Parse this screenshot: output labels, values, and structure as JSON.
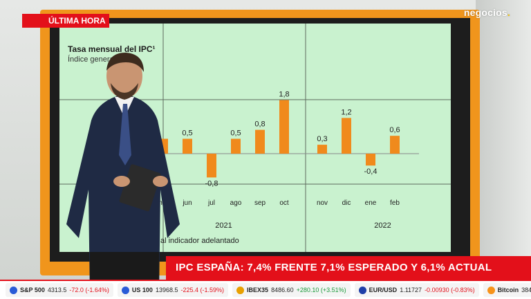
{
  "header": {
    "breaking_label": "ÚLTIMA HORA",
    "logo_text": "negocios",
    "logo_dot": "."
  },
  "chart": {
    "title": "Tasa mensual del IPC¹",
    "subtitle": "Índice general. Po",
    "footnote": "al indicador adelantado"
  },
  "chart_data": {
    "type": "bar",
    "title": "Tasa mensual del IPC¹",
    "categories": [
      "may",
      "jun",
      "jul",
      "ago",
      "sep",
      "oct",
      "nov",
      "dic",
      "ene",
      "feb"
    ],
    "year_groups": [
      {
        "label": "2021",
        "from": "may",
        "to": "oct"
      },
      {
        "label": "2022",
        "from": "ene",
        "to": "feb"
      }
    ],
    "series": [
      {
        "values": [
          0.5,
          0.5,
          -0.8,
          0.5,
          0.8,
          1.8,
          0.3,
          1.2,
          -0.4,
          0.6
        ]
      }
    ],
    "value_labels": [
      "",
      "0,5",
      "-0,8",
      "0,5",
      "0,8",
      "1,8",
      "0,3",
      "1,2",
      "-0,4",
      "0,6"
    ],
    "ylim": [
      -1.2,
      2.2
    ],
    "bar_color": "#f08a1c"
  },
  "banner": {
    "headline": "IPC ESPAÑA: 7,4% FRENTE 7,1% ESPERADO Y 6,1% ACTUAL"
  },
  "ticker": [
    {
      "name": "S&P 500",
      "value": "4313.5",
      "change": "-72.0 (-1.64%)",
      "dir": "neg",
      "flag": "#2a5bd7"
    },
    {
      "name": "US 100",
      "value": "13968.5",
      "change": "-225.4 (-1.59%)",
      "dir": "neg",
      "flag": "#2a5bd7"
    },
    {
      "name": "IBEX35",
      "value": "8486.60",
      "change": "+280.10 (+3.51%)",
      "dir": "pos",
      "flag": "#e8a000"
    },
    {
      "name": "EUR/USD",
      "value": "1.11727",
      "change": "-0.00930 (-0.83%)",
      "dir": "neg",
      "flag": "#1f3fa8"
    },
    {
      "name": "Bitcoin",
      "value": "38474.21",
      "change": "+761.53 (+2.",
      "dir": "pos",
      "flag": "#f7931a"
    }
  ]
}
